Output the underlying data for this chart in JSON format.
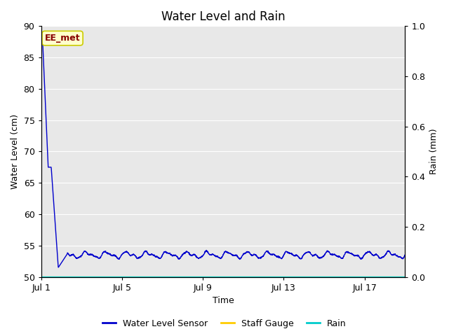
{
  "title": "Water Level and Rain",
  "xlabel": "Time",
  "ylabel_left": "Water Level (cm)",
  "ylabel_right": "Rain (mm)",
  "ylim_left": [
    50,
    90
  ],
  "ylim_right": [
    0.0,
    1.0
  ],
  "yticks_left": [
    50,
    55,
    60,
    65,
    70,
    75,
    80,
    85,
    90
  ],
  "yticks_right": [
    0.0,
    0.2,
    0.4,
    0.6,
    0.8,
    1.0
  ],
  "x_tick_positions": [
    0,
    4,
    8,
    12,
    16
  ],
  "x_tick_labels": [
    "Jul 1",
    "Jul 5",
    "Jul 9",
    "Jul 13",
    "Jul 17"
  ],
  "xlim": [
    0,
    18
  ],
  "annotation_text": "EE_met",
  "annotation_box_facecolor": "#ffffcc",
  "annotation_box_edgecolor": "#cccc00",
  "annotation_text_color": "#880000",
  "water_level_color": "#0000cc",
  "staff_gauge_color": "#ffcc00",
  "rain_color": "#00cccc",
  "plot_bg_color": "#e8e8e8",
  "fig_bg_color": "#ffffff",
  "grid_color": "#ffffff",
  "legend_labels": [
    "Water Level Sensor",
    "Staff Gauge",
    "Rain"
  ],
  "title_fontsize": 12,
  "axis_label_fontsize": 9,
  "tick_fontsize": 9,
  "legend_fontsize": 9
}
